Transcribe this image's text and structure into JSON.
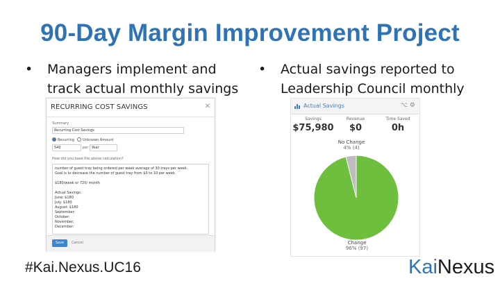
{
  "slide": {
    "title": "90-Day Margin Improvement Project",
    "bullet_char": "•",
    "bullets": [
      {
        "line1": "Managers implement and",
        "line2": "track actual monthly savings"
      },
      {
        "line1": "Actual savings reported to",
        "line2": "Leadership Council monthly"
      }
    ],
    "hashtag": "#Kai.Nexus.UC16",
    "logo": {
      "part1": "Kai",
      "part2": "Nexus"
    },
    "colors": {
      "title": "#2e74b5",
      "pie_change": "#6fbf3f",
      "pie_no_change": "#bdbdbd",
      "link": "#4a7ab5"
    }
  },
  "dialog": {
    "title": "RECURRING COST SAVINGS",
    "close_icon": "close-icon",
    "summary_label": "Summary",
    "summary_value": "Recurring Cost Savings",
    "radio_recurring": "Recurring",
    "radio_unknown": "Unknown Amount",
    "amount_value": "540",
    "per_label": "per",
    "period_value": "Year",
    "calc_label": "How did you base the above calculation?",
    "notes": [
      "number of guest tray being ordered per week average of 30 trays per week.",
      "Goal is to decrease the number of guest tray from $0 to 10 per week.",
      "",
      "$180/week or 720/ month",
      "",
      "Actual Savings:",
      "June: $180",
      "July: $180",
      "August: $180",
      "September:",
      "October:",
      "November:",
      "December:"
    ],
    "save_label": "Save",
    "cancel_label": "Cancel"
  },
  "widget": {
    "title": "Actual Savings",
    "stats": [
      {
        "label": "Savings",
        "value": "$75,980"
      },
      {
        "label": "Revenue",
        "value": "$0"
      },
      {
        "label": "Time Saved",
        "value": "0h"
      }
    ],
    "tools": "⌥ ⚙",
    "no_change_label": "No Change",
    "no_change_value": "4% (4)",
    "change_label": "Change",
    "change_value": "96% (97)"
  },
  "chart_data": {
    "type": "pie",
    "categories": [
      "Change",
      "No Change"
    ],
    "values": [
      97,
      4
    ],
    "percent_labels": [
      "96% (97)",
      "4% (4)"
    ]
  }
}
